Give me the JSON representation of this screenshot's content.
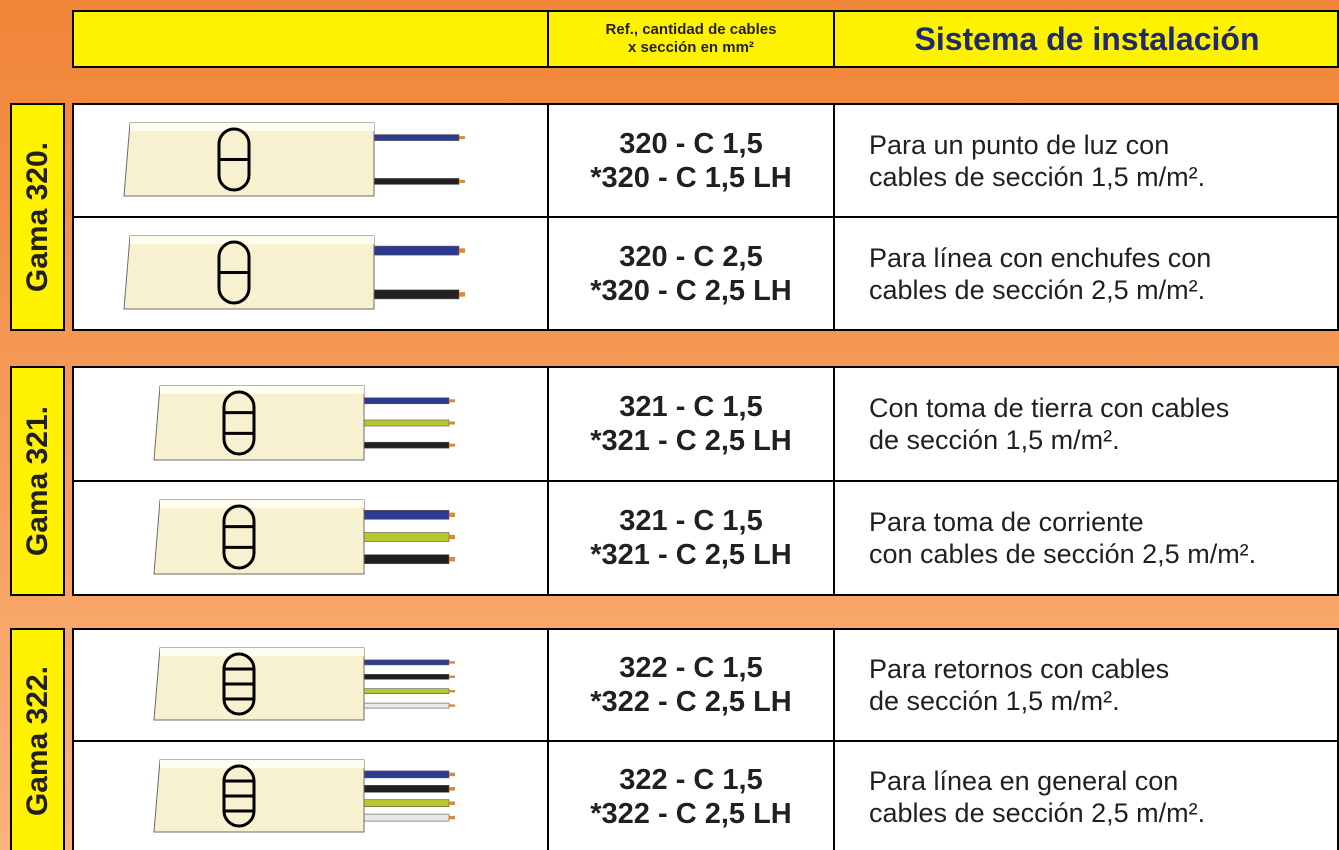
{
  "header": {
    "ref_title": [
      "Ref., cantidad de cables",
      "x sección en mm²"
    ],
    "system_title": "Sistema de instalación"
  },
  "groups": [
    {
      "label": "Gama 320.",
      "rows": [
        {
          "refs": [
            "320 - C 1,5",
            "*320 - C 1,5 LH"
          ],
          "description": [
            "Para un punto de luz con",
            "cables de sección 1,5 m/m²."
          ]
        },
        {
          "refs": [
            "320 - C 2,5",
            "*320 - C 2,5 LH"
          ],
          "description": [
            "Para línea con enchufes con",
            "cables de sección 2,5 m/m²."
          ]
        }
      ]
    },
    {
      "label": "Gama 321.",
      "rows": [
        {
          "refs": [
            "321 - C 1,5",
            "*321 - C 2,5 LH"
          ],
          "description": [
            "Con toma de tierra con cables",
            "de sección 1,5 m/m²."
          ]
        },
        {
          "refs": [
            "321 - C 1,5",
            "*321 - C 2,5 LH"
          ],
          "description": [
            "Para toma de corriente",
            "con cables de sección 2,5 m/m²."
          ]
        }
      ]
    },
    {
      "label": "Gama 322.",
      "rows": [
        {
          "refs": [
            "322 - C 1,5",
            "*322 - C 2,5 LH"
          ],
          "description": [
            "Para retornos con cables",
            "de sección 1,5 m/m²."
          ]
        },
        {
          "refs": [
            "322 - C 1,5",
            "*322 - C 2,5 LH"
          ],
          "description": [
            "Para línea en general con",
            "cables de sección 2,5 m/m²."
          ]
        }
      ]
    }
  ]
}
